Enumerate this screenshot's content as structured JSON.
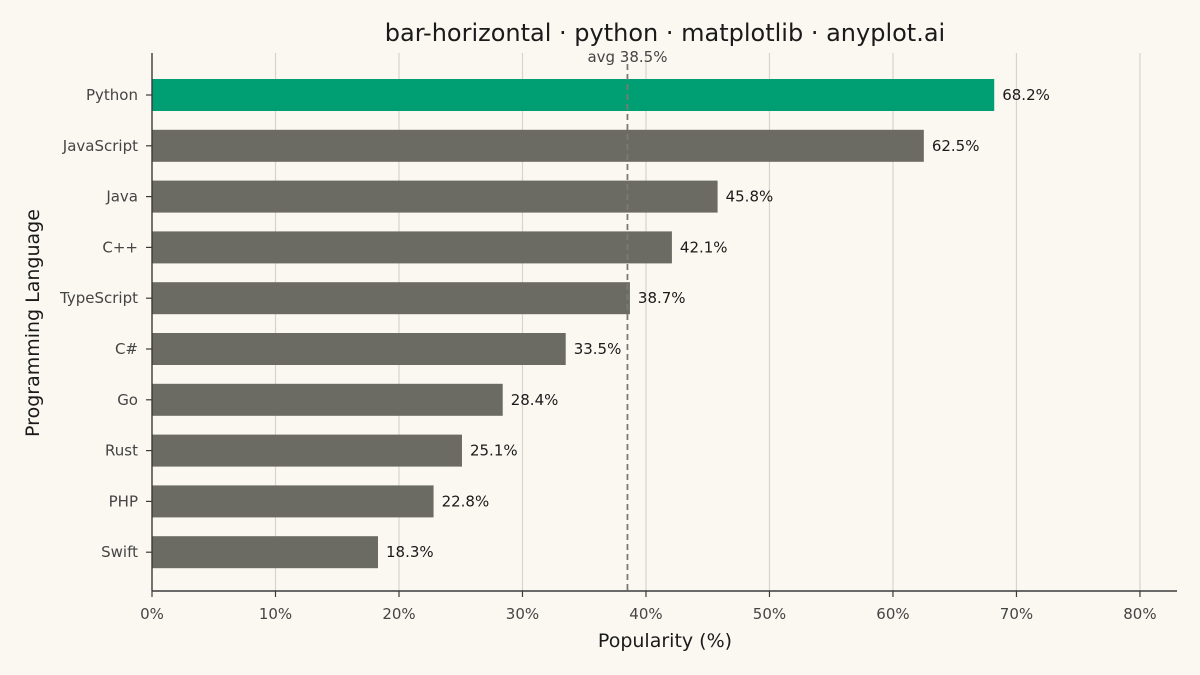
{
  "chart_data": {
    "type": "bar",
    "orientation": "horizontal",
    "title": "bar-horizontal · python · matplotlib · anyplot.ai",
    "xlabel": "Popularity (%)",
    "ylabel": "Programming Language",
    "categories": [
      "Python",
      "JavaScript",
      "Java",
      "C++",
      "TypeScript",
      "C#",
      "Go",
      "Rust",
      "PHP",
      "Swift"
    ],
    "values": [
      68.2,
      62.5,
      45.8,
      42.1,
      38.7,
      33.5,
      28.4,
      25.1,
      22.8,
      18.3
    ],
    "value_labels": [
      "68.2%",
      "62.5%",
      "45.8%",
      "42.1%",
      "38.7%",
      "33.5%",
      "28.4%",
      "25.1%",
      "22.8%",
      "18.3%"
    ],
    "xlim": [
      0,
      83
    ],
    "x_ticks": [
      0,
      10,
      20,
      30,
      40,
      50,
      60,
      70,
      80
    ],
    "x_tick_labels": [
      "0%",
      "10%",
      "20%",
      "30%",
      "40%",
      "50%",
      "60%",
      "70%",
      "80%"
    ],
    "grid": "vertical",
    "reference_line": {
      "value": 38.5,
      "label": "avg 38.5%",
      "style": "dashed"
    },
    "highlight": {
      "category": "Python",
      "color": "#009e73"
    },
    "colors": {
      "bar": "#6b6b63",
      "highlight": "#009e73",
      "background": "#faf8f1",
      "grid": "#d6d4cd",
      "axis": "#3a3a3a",
      "text": "#1a1a1a",
      "tick_text": "#444444",
      "avg_line": "#7a7a74"
    }
  }
}
